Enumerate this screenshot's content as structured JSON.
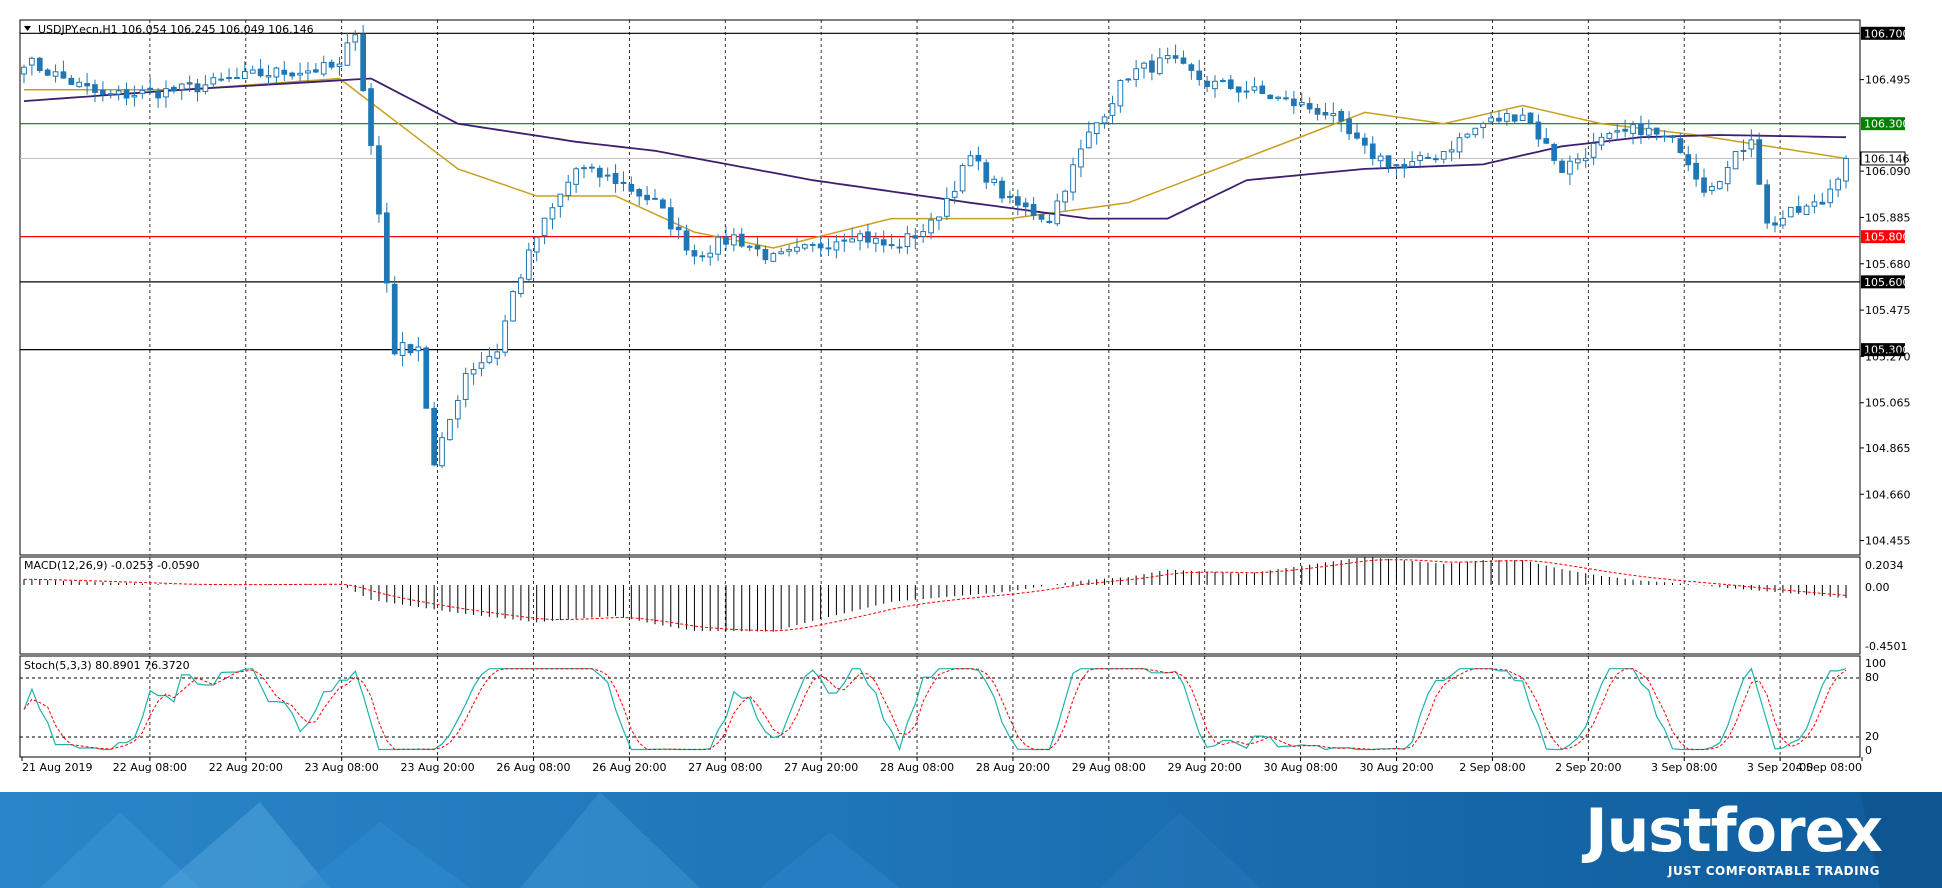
{
  "main_panel": {
    "title": "USDJPY.ecn,H1  106.054 106.245 106.049 106.146",
    "price_ticks": [
      "106.495",
      "106.090",
      "105.885",
      "105.680",
      "105.475",
      "105.270",
      "105.065",
      "104.865",
      "104.660",
      "104.455"
    ],
    "levels": [
      {
        "value": 106.7,
        "label": "106.700",
        "color": "#000000"
      },
      {
        "value": 106.3,
        "label": "106.300",
        "color": "#008000"
      },
      {
        "value": 105.8,
        "label": "105.800",
        "color": "#ff0000"
      },
      {
        "value": 105.6,
        "label": "105.600",
        "color": "#000000"
      },
      {
        "value": 105.3,
        "label": "105.300",
        "color": "#000000"
      }
    ],
    "current_price": {
      "value": 106.146,
      "label": "106.146"
    }
  },
  "macd_panel": {
    "title": "MACD(12,26,9) -0.0253 -0.0590",
    "ticks": [
      "0.2034",
      "0.00",
      "-0.4501"
    ]
  },
  "stoch_panel": {
    "title": "Stoch(5,3,3) 80.8901 76.3720",
    "ticks": [
      "100",
      "80",
      "20",
      "0"
    ]
  },
  "time_labels": [
    "21 Aug 2019",
    "22 Aug 08:00",
    "22 Aug 20:00",
    "23 Aug 08:00",
    "23 Aug 20:00",
    "26 Aug 08:00",
    "26 Aug 20:00",
    "27 Aug 08:00",
    "27 Aug 20:00",
    "28 Aug 08:00",
    "28 Aug 20:00",
    "29 Aug 08:00",
    "29 Aug 20:00",
    "30 Aug 08:00",
    "30 Aug 20:00",
    "2 Sep 08:00",
    "2 Sep 20:00",
    "3 Sep 08:00",
    "3 Sep 20:00",
    "4 Sep 08:00"
  ],
  "branding": {
    "name": "Justforex",
    "tagline": "JUST COMFORTABLE TRADING"
  },
  "colors": {
    "bull": "#1f77b4",
    "bear": "#1f77b4",
    "ma_fast": "#c8a020",
    "ma_slow": "#3c1f6e",
    "stoch_main": "#20b2aa",
    "signal": "#ff0000",
    "banner": "#1a6fb0"
  },
  "chart_data": {
    "type": "candlestick",
    "symbol": "USDJPY.ecn",
    "timeframe": "H1",
    "ylim": [
      104.4,
      106.75
    ],
    "waypoints_close": [
      {
        "t": 0,
        "c": 106.58
      },
      {
        "t": 10,
        "c": 106.42
      },
      {
        "t": 20,
        "c": 106.45
      },
      {
        "t": 30,
        "c": 106.52
      },
      {
        "t": 40,
        "c": 106.55
      },
      {
        "t": 42,
        "c": 106.72
      },
      {
        "t": 44,
        "c": 106.2
      },
      {
        "t": 47,
        "c": 105.3
      },
      {
        "t": 50,
        "c": 105.32
      },
      {
        "t": 52,
        "c": 104.78
      },
      {
        "t": 56,
        "c": 105.2
      },
      {
        "t": 60,
        "c": 105.3
      },
      {
        "t": 62,
        "c": 105.55
      },
      {
        "t": 65,
        "c": 105.8
      },
      {
        "t": 70,
        "c": 106.1
      },
      {
        "t": 75,
        "c": 106.05
      },
      {
        "t": 80,
        "c": 105.95
      },
      {
        "t": 85,
        "c": 105.72
      },
      {
        "t": 90,
        "c": 105.8
      },
      {
        "t": 95,
        "c": 105.7
      },
      {
        "t": 100,
        "c": 105.75
      },
      {
        "t": 105,
        "c": 105.82
      },
      {
        "t": 110,
        "c": 105.75
      },
      {
        "t": 115,
        "c": 105.85
      },
      {
        "t": 120,
        "c": 106.15
      },
      {
        "t": 125,
        "c": 105.95
      },
      {
        "t": 130,
        "c": 105.88
      },
      {
        "t": 135,
        "c": 106.25
      },
      {
        "t": 140,
        "c": 106.52
      },
      {
        "t": 145,
        "c": 106.58
      },
      {
        "t": 150,
        "c": 106.48
      },
      {
        "t": 155,
        "c": 106.45
      },
      {
        "t": 160,
        "c": 106.4
      },
      {
        "t": 165,
        "c": 106.35
      },
      {
        "t": 170,
        "c": 106.18
      },
      {
        "t": 175,
        "c": 106.1
      },
      {
        "t": 180,
        "c": 106.18
      },
      {
        "t": 185,
        "c": 106.3
      },
      {
        "t": 190,
        "c": 106.35
      },
      {
        "t": 195,
        "c": 106.1
      },
      {
        "t": 200,
        "c": 106.22
      },
      {
        "t": 205,
        "c": 106.28
      },
      {
        "t": 210,
        "c": 106.2
      },
      {
        "t": 213,
        "c": 106.02
      },
      {
        "t": 216,
        "c": 106.1
      },
      {
        "t": 219,
        "c": 106.25
      },
      {
        "t": 221,
        "c": 105.85
      },
      {
        "t": 224,
        "c": 105.9
      },
      {
        "t": 228,
        "c": 105.95
      },
      {
        "t": 231,
        "c": 106.146
      }
    ],
    "ma_fast_waypoints": [
      {
        "t": 0,
        "c": 106.45
      },
      {
        "t": 20,
        "c": 106.45
      },
      {
        "t": 40,
        "c": 106.5
      },
      {
        "t": 55,
        "c": 106.1
      },
      {
        "t": 65,
        "c": 105.98
      },
      {
        "t": 75,
        "c": 105.98
      },
      {
        "t": 85,
        "c": 105.82
      },
      {
        "t": 95,
        "c": 105.75
      },
      {
        "t": 110,
        "c": 105.88
      },
      {
        "t": 125,
        "c": 105.88
      },
      {
        "t": 140,
        "c": 105.95
      },
      {
        "t": 155,
        "c": 106.15
      },
      {
        "t": 170,
        "c": 106.35
      },
      {
        "t": 180,
        "c": 106.3
      },
      {
        "t": 190,
        "c": 106.38
      },
      {
        "t": 200,
        "c": 106.3
      },
      {
        "t": 212,
        "c": 106.25
      },
      {
        "t": 231,
        "c": 106.146
      }
    ],
    "ma_slow_waypoints": [
      {
        "t": 0,
        "c": 106.4
      },
      {
        "t": 20,
        "c": 106.45
      },
      {
        "t": 44,
        "c": 106.5
      },
      {
        "t": 55,
        "c": 106.3
      },
      {
        "t": 70,
        "c": 106.22
      },
      {
        "t": 80,
        "c": 106.18
      },
      {
        "t": 100,
        "c": 106.05
      },
      {
        "t": 120,
        "c": 105.95
      },
      {
        "t": 135,
        "c": 105.88
      },
      {
        "t": 145,
        "c": 105.88
      },
      {
        "t": 155,
        "c": 106.05
      },
      {
        "t": 170,
        "c": 106.1
      },
      {
        "t": 185,
        "c": 106.12
      },
      {
        "t": 195,
        "c": 106.2
      },
      {
        "t": 205,
        "c": 106.24
      },
      {
        "t": 215,
        "c": 106.25
      },
      {
        "t": 231,
        "c": 106.24
      }
    ]
  }
}
